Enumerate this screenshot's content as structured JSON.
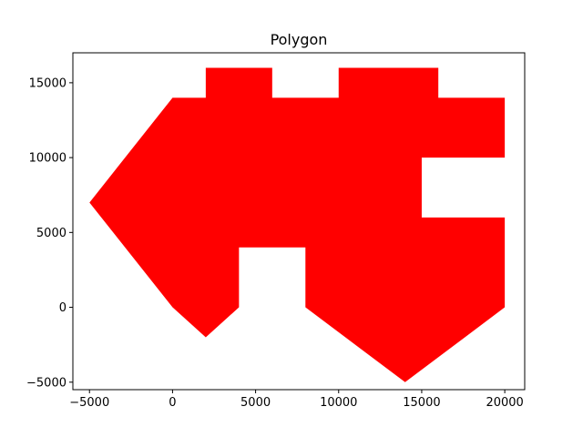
{
  "chart_data": {
    "type": "area",
    "title": "Polygon",
    "xlabel": "",
    "ylabel": "",
    "xlim": [
      -6000,
      21200
    ],
    "ylim": [
      -5500,
      17000
    ],
    "xticks": [
      -5000,
      0,
      5000,
      10000,
      15000,
      20000
    ],
    "yticks": [
      -5000,
      0,
      5000,
      10000,
      15000
    ],
    "xtick_labels": [
      "−5000",
      "0",
      "5000",
      "10000",
      "15000",
      "20000"
    ],
    "ytick_labels": [
      "−5000",
      "0",
      "5000",
      "10000",
      "15000"
    ],
    "grid": false,
    "fill_color": "#ff0000",
    "polygon": [
      [
        -5000,
        7000
      ],
      [
        0,
        14000
      ],
      [
        2000,
        14000
      ],
      [
        2000,
        16000
      ],
      [
        6000,
        16000
      ],
      [
        6000,
        14000
      ],
      [
        10000,
        14000
      ],
      [
        10000,
        16000
      ],
      [
        16000,
        16000
      ],
      [
        16000,
        14000
      ],
      [
        20000,
        14000
      ],
      [
        20000,
        10000
      ],
      [
        15000,
        10000
      ],
      [
        15000,
        6000
      ],
      [
        20000,
        6000
      ],
      [
        20000,
        0
      ],
      [
        14000,
        -5000
      ],
      [
        8000,
        0
      ],
      [
        8000,
        4000
      ],
      [
        4000,
        4000
      ],
      [
        4000,
        0
      ],
      [
        2000,
        -2000
      ],
      [
        0,
        0
      ]
    ]
  }
}
